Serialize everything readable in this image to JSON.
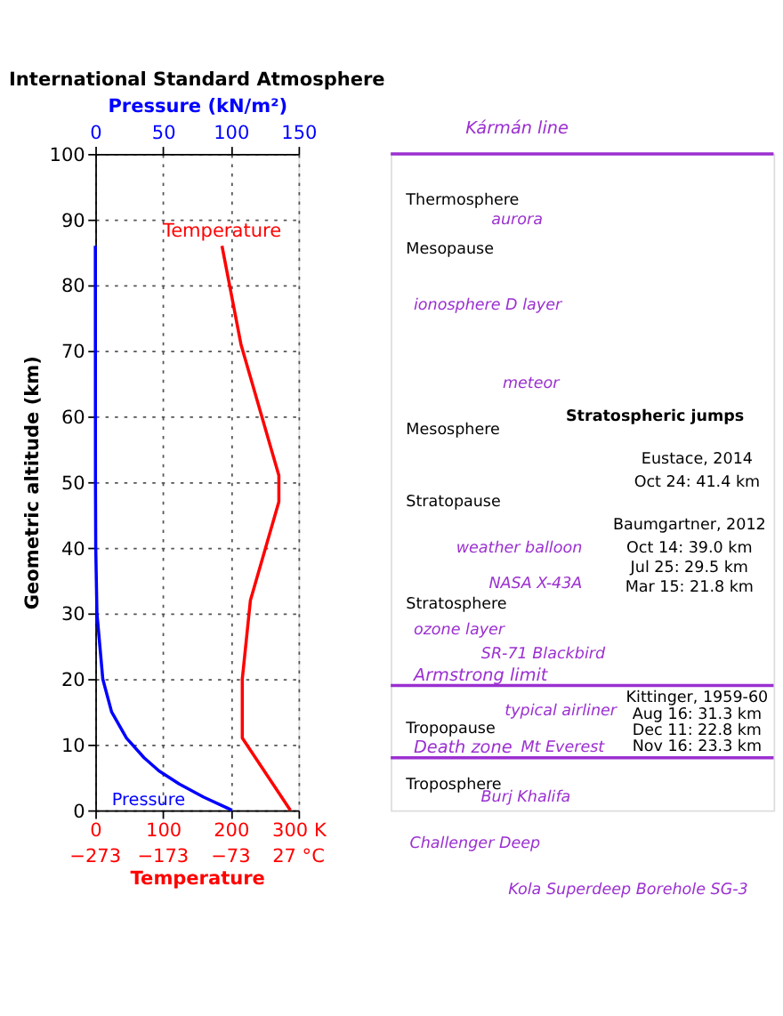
{
  "chart_data": {
    "type": "line",
    "title": "International Standard Atmosphere",
    "xlabel": "Temperature",
    "x2label": "Pressure (kN/m²)",
    "ylabel": "Geometric altitude (km)",
    "xlim": [
      0,
      300
    ],
    "xticks": [
      0,
      100,
      200,
      {
        "value": 300,
        "label": "300 K"
      }
    ],
    "x2lim": [
      0,
      150
    ],
    "x2ticks": [
      0,
      50,
      100,
      150
    ],
    "ylim": [
      0,
      100
    ],
    "yticks": [
      0,
      10,
      20,
      30,
      40,
      50,
      60,
      70,
      80,
      90,
      100
    ],
    "grid": true,
    "series": [
      {
        "name": "Temperature",
        "color": "#ff0000",
        "x": [
          288,
          217,
          217,
          229,
          271,
          271,
          215,
          187
        ],
        "values": [
          0,
          11,
          20,
          32,
          47,
          51,
          71,
          86
        ]
      },
      {
        "name": "Pressure",
        "color": "#0000ff",
        "axis": "x2",
        "x": [
          101,
          80,
          62,
          47,
          36,
          23,
          12,
          5.5,
          1.2,
          0.3,
          0.1,
          0
        ],
        "values": [
          0,
          2,
          4,
          6,
          8,
          11,
          15,
          20,
          30,
          40,
          50,
          86
        ]
      }
    ],
    "ref_lines": [
      {
        "axis": "y",
        "value": 100,
        "label": "Kármán line",
        "color": "#9b30d0"
      },
      {
        "axis": "y",
        "value": 19,
        "label": "Armstrong limit",
        "color": "#9b30d0"
      },
      {
        "axis": "y",
        "value": 8,
        "label": "Death zone",
        "color": "#9b30d0"
      }
    ],
    "annotations": [
      "Thermosphere",
      "Mesopause",
      "Mesosphere",
      "Stratopause",
      "Stratosphere",
      "Tropopause",
      "Troposphere",
      "aurora",
      "ionosphere D layer",
      "meteor",
      "weather balloon",
      "NASA X-43A",
      "ozone layer",
      "SR-71 Blackbird",
      "typical airliner",
      "Mt Everest",
      "Burj Khalifa",
      "Stratospheric jumps",
      "Eustace, 2014",
      "Oct 24: 41.4 km",
      "Baumgartner, 2012",
      "Oct 14: 39.0 km",
      "Jul 25: 29.5 km",
      "Mar 15: 21.8 km",
      "Kittinger, 1959-60",
      "Aug 16: 31.3 km",
      "Dec 11: 22.8 km",
      "Nov 16: 23.3 km",
      "Challenger Deep",
      "Kola Superdeep Borehole SG-3",
      "−273",
      "−173",
      "−73",
      "27 °C"
    ]
  }
}
